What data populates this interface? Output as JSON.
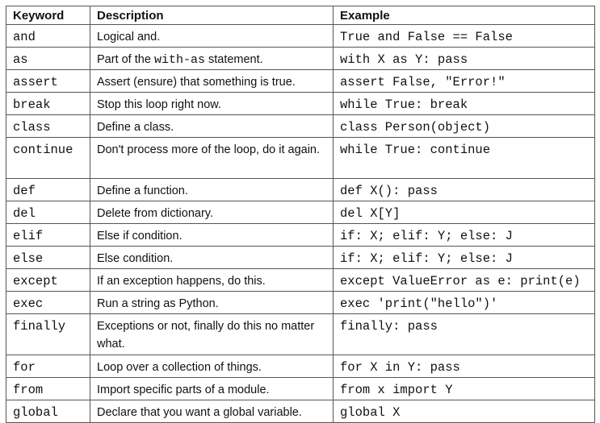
{
  "table": {
    "headers": {
      "keyword": "Keyword",
      "description": "Description",
      "example": "Example"
    },
    "rows": [
      {
        "keyword": "and",
        "description": "Logical and.",
        "example": "True and False == False"
      },
      {
        "keyword": "as",
        "description_pre": "Part of the ",
        "description_code": "with-as",
        "description_post": " statement.",
        "example": "with X as Y: pass"
      },
      {
        "keyword": "assert",
        "description": "Assert (ensure) that something is true.",
        "example": "assert False, \"Error!\""
      },
      {
        "keyword": "break",
        "description": "Stop this loop right now.",
        "example": "while True: break"
      },
      {
        "keyword": "class",
        "description": "Define a class.",
        "example": "class Person(object)"
      },
      {
        "keyword": "continue",
        "description": "Don't process more of the loop, do it again.",
        "example": "while True: continue"
      },
      {
        "keyword": "def",
        "description": "Define a function.",
        "example": "def X(): pass"
      },
      {
        "keyword": "del",
        "description": "Delete from dictionary.",
        "example": "del X[Y]"
      },
      {
        "keyword": "elif",
        "description": "Else if condition.",
        "example": "if: X; elif: Y; else: J"
      },
      {
        "keyword": "else",
        "description": "Else condition.",
        "example": "if: X; elif: Y; else: J"
      },
      {
        "keyword": "except",
        "description": "If an exception happens, do this.",
        "example": "except ValueError as e: print(e)"
      },
      {
        "keyword": "exec",
        "description": "Run a string as Python.",
        "example": "exec 'print(\"hello\")'"
      },
      {
        "keyword": "finally",
        "description": "Exceptions or not, finally do this no matter what.",
        "example": "finally: pass"
      },
      {
        "keyword": "for",
        "description": "Loop over a collection of things.",
        "example": "for X in Y: pass"
      },
      {
        "keyword": "from",
        "description": "Import specific parts of a module.",
        "example": "from x import Y"
      },
      {
        "keyword": "global",
        "description": "Declare that you want a global variable.",
        "example": "global X"
      }
    ]
  }
}
